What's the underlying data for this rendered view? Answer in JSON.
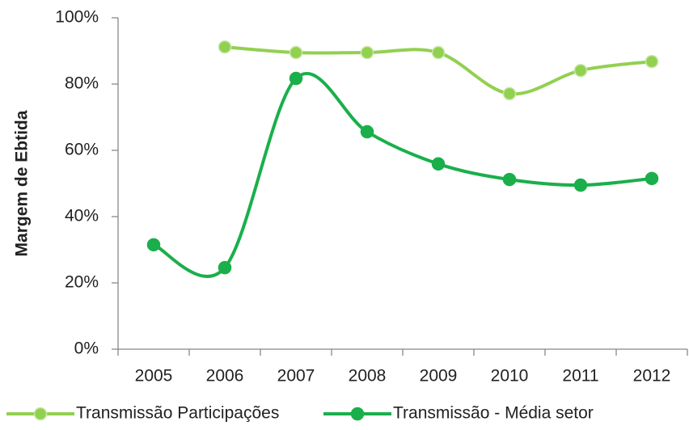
{
  "chart_data": {
    "type": "line",
    "y_label": "Margem de Ebtida",
    "categories": [
      "2005",
      "2006",
      "2007",
      "2008",
      "2009",
      "2010",
      "2011",
      "2012"
    ],
    "series": [
      {
        "name": "Transmissão Participações",
        "color": "#92d050",
        "values": [
          null,
          91.2,
          89.5,
          89.5,
          89.5,
          77.1,
          84.1,
          86.8
        ]
      },
      {
        "name": "Transmissão - Média setor",
        "color": "#1aaf4b",
        "values": [
          31.5,
          24.6,
          81.7,
          65.6,
          55.9,
          51.2,
          49.5,
          51.5
        ]
      }
    ],
    "ylim": [
      0,
      100
    ],
    "yticks": [
      {
        "value": 0,
        "label": "0%"
      },
      {
        "value": 20,
        "label": "20%"
      },
      {
        "value": 40,
        "label": "40%"
      },
      {
        "value": 60,
        "label": "60%"
      },
      {
        "value": 80,
        "label": "80%"
      },
      {
        "value": 100,
        "label": "100%"
      }
    ],
    "smooth": true,
    "grid": false,
    "legend": "bottom"
  }
}
